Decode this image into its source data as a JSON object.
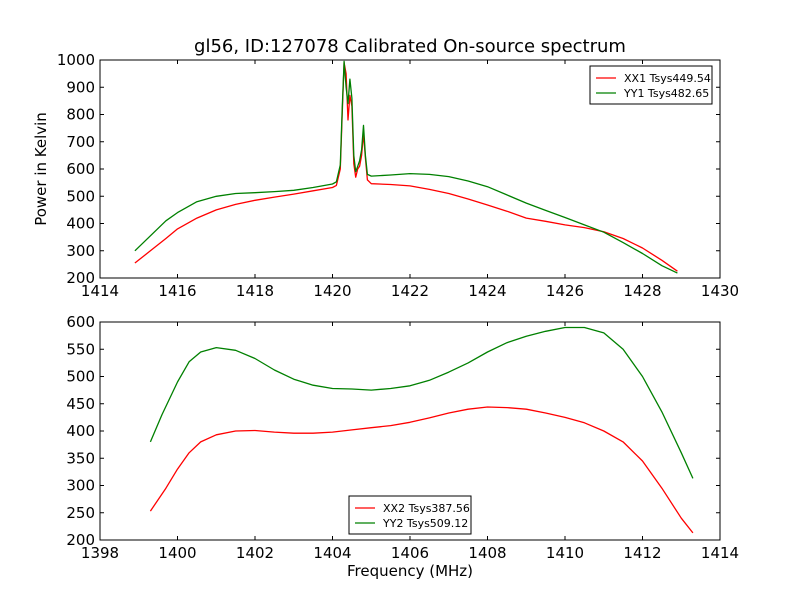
{
  "figure": {
    "title": "gl56, ID:127078 Calibrated On-source spectrum",
    "ylabel": "Power in Kelvin",
    "xlabel": "Frequency (MHz)"
  },
  "colors": {
    "red": "#ff0000",
    "green": "#008000"
  },
  "chart_data": [
    {
      "type": "line",
      "title": "gl56, ID:127078 Calibrated On-source spectrum",
      "xlabel": "",
      "ylabel": "Power in Kelvin",
      "xlim": [
        1414,
        1430
      ],
      "ylim": [
        200,
        1000
      ],
      "xticks": [
        1414,
        1416,
        1418,
        1420,
        1422,
        1424,
        1426,
        1428,
        1430
      ],
      "yticks": [
        200,
        300,
        400,
        500,
        600,
        700,
        800,
        900,
        1000
      ],
      "grid": false,
      "legend_position": "top-right",
      "series": [
        {
          "name": "XX1 Tsys449.54",
          "color": "#ff0000",
          "x": [
            1414.9,
            1415.3,
            1415.7,
            1416.0,
            1416.5,
            1417.0,
            1417.5,
            1418.0,
            1418.5,
            1419.0,
            1419.5,
            1420.0,
            1420.1,
            1420.2,
            1420.25,
            1420.3,
            1420.35,
            1420.4,
            1420.45,
            1420.5,
            1420.55,
            1420.6,
            1420.65,
            1420.7,
            1420.75,
            1420.8,
            1420.85,
            1420.9,
            1421.0,
            1421.5,
            1422.0,
            1422.5,
            1423.0,
            1423.5,
            1424.0,
            1424.5,
            1425.0,
            1425.5,
            1426.0,
            1426.5,
            1427.0,
            1427.5,
            1428.0,
            1428.5,
            1428.9
          ],
          "y": [
            255,
            300,
            345,
            380,
            420,
            450,
            470,
            485,
            497,
            508,
            520,
            532,
            540,
            600,
            800,
            990,
            950,
            780,
            870,
            830,
            620,
            570,
            600,
            610,
            650,
            730,
            640,
            560,
            546,
            543,
            538,
            525,
            510,
            490,
            468,
            445,
            420,
            408,
            395,
            385,
            370,
            345,
            310,
            265,
            225
          ]
        },
        {
          "name": "YY1 Tsys482.65",
          "color": "#008000",
          "x": [
            1414.9,
            1415.3,
            1415.7,
            1416.0,
            1416.5,
            1417.0,
            1417.5,
            1418.0,
            1418.5,
            1419.0,
            1419.5,
            1420.0,
            1420.1,
            1420.2,
            1420.25,
            1420.3,
            1420.35,
            1420.4,
            1420.45,
            1420.5,
            1420.55,
            1420.6,
            1420.65,
            1420.7,
            1420.75,
            1420.8,
            1420.85,
            1420.9,
            1421.0,
            1421.5,
            1422.0,
            1422.5,
            1423.0,
            1423.5,
            1424.0,
            1424.5,
            1425.0,
            1425.5,
            1426.0,
            1426.5,
            1427.0,
            1427.5,
            1428.0,
            1428.5,
            1428.9
          ],
          "y": [
            300,
            355,
            410,
            440,
            480,
            500,
            510,
            513,
            517,
            522,
            532,
            545,
            553,
            615,
            820,
            995,
            900,
            840,
            930,
            860,
            650,
            590,
            610,
            630,
            670,
            760,
            650,
            580,
            574,
            578,
            583,
            580,
            572,
            556,
            535,
            505,
            475,
            448,
            422,
            395,
            368,
            330,
            290,
            245,
            218
          ]
        }
      ]
    },
    {
      "type": "line",
      "title": "",
      "xlabel": "Frequency (MHz)",
      "ylabel": "",
      "xlim": [
        1398,
        1414
      ],
      "ylim": [
        200,
        600
      ],
      "xticks": [
        1398,
        1400,
        1402,
        1404,
        1406,
        1408,
        1410,
        1412,
        1414
      ],
      "yticks": [
        200,
        250,
        300,
        350,
        400,
        450,
        500,
        550,
        600
      ],
      "grid": false,
      "legend_position": "bottom-center",
      "series": [
        {
          "name": "XX2 Tsys387.56",
          "color": "#ff0000",
          "x": [
            1399.3,
            1399.7,
            1400.0,
            1400.3,
            1400.6,
            1401.0,
            1401.5,
            1402.0,
            1402.5,
            1403.0,
            1403.5,
            1404.0,
            1404.5,
            1405.0,
            1405.5,
            1406.0,
            1406.5,
            1407.0,
            1407.5,
            1408.0,
            1408.5,
            1409.0,
            1409.5,
            1410.0,
            1410.5,
            1411.0,
            1411.5,
            1412.0,
            1412.5,
            1413.0,
            1413.3
          ],
          "y": [
            253,
            295,
            330,
            360,
            380,
            393,
            400,
            401,
            398,
            396,
            396,
            398,
            402,
            406,
            410,
            416,
            424,
            433,
            440,
            444,
            443,
            440,
            433,
            425,
            415,
            400,
            380,
            345,
            295,
            240,
            213
          ]
        },
        {
          "name": "YY2 Tsys509.12",
          "color": "#008000",
          "x": [
            1399.3,
            1399.6,
            1400.0,
            1400.3,
            1400.6,
            1401.0,
            1401.5,
            1402.0,
            1402.5,
            1403.0,
            1403.5,
            1404.0,
            1404.5,
            1405.0,
            1405.5,
            1406.0,
            1406.5,
            1407.0,
            1407.5,
            1408.0,
            1408.5,
            1409.0,
            1409.5,
            1410.0,
            1410.5,
            1411.0,
            1411.5,
            1412.0,
            1412.5,
            1413.0,
            1413.3
          ],
          "y": [
            380,
            430,
            490,
            527,
            545,
            553,
            548,
            533,
            512,
            495,
            484,
            478,
            477,
            475,
            478,
            483,
            493,
            508,
            525,
            545,
            562,
            574,
            583,
            590,
            590,
            580,
            550,
            500,
            435,
            360,
            313
          ]
        }
      ]
    }
  ]
}
